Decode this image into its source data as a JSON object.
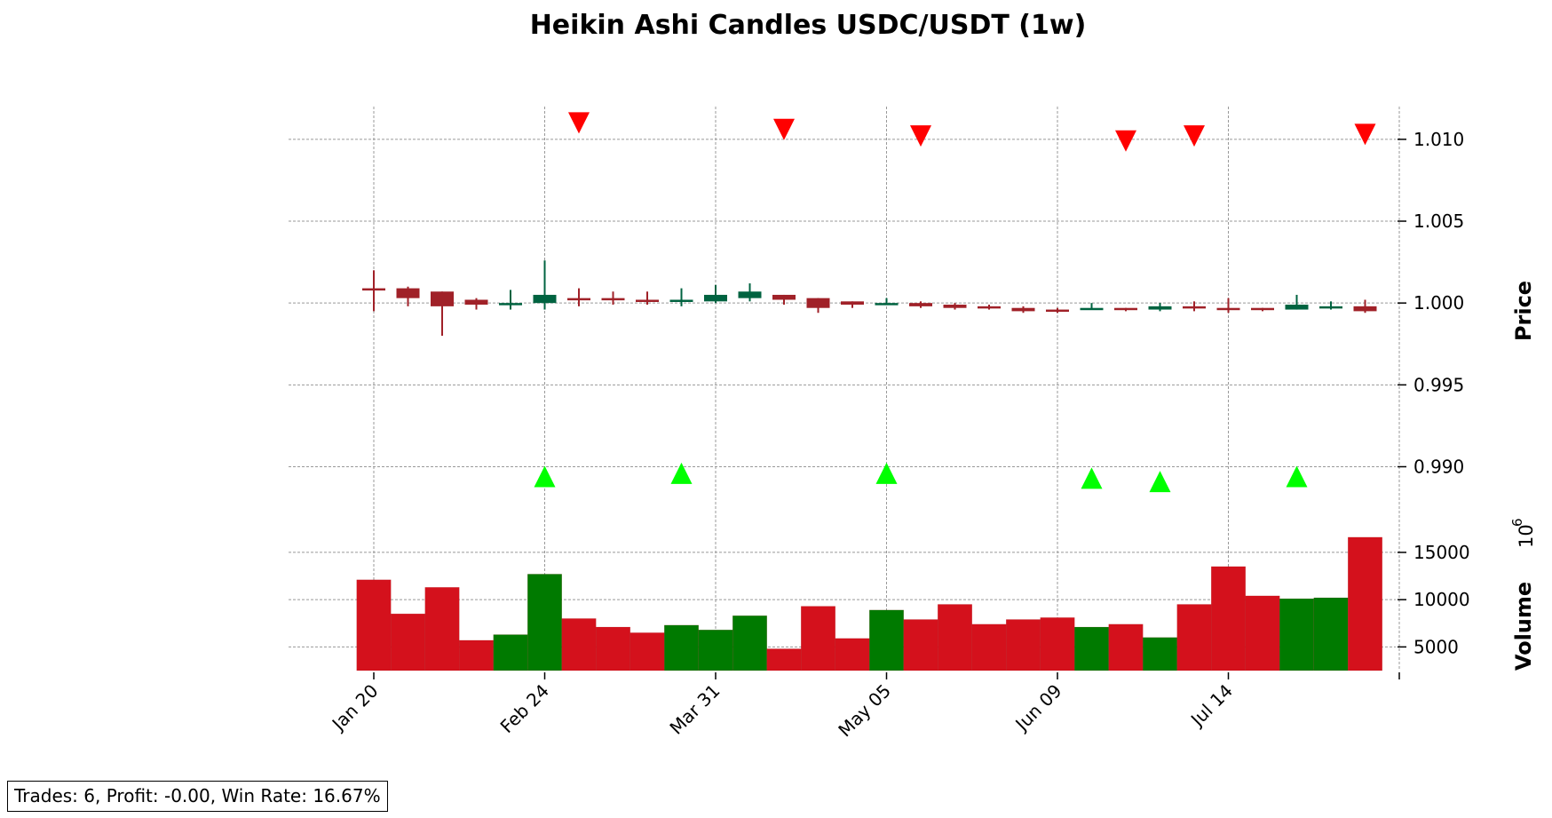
{
  "chart_data": {
    "type": "candlestick",
    "title": "Heikin Ashi Candles USDC/USDT (1w)",
    "price_axis": {
      "label": "Price",
      "ticks": [
        "1.010",
        "1.005",
        "1.000",
        "0.995",
        "0.990"
      ],
      "tick_values": [
        1.01,
        1.005,
        1.0,
        0.995,
        0.99
      ],
      "ylim": [
        0.9865,
        1.012
      ]
    },
    "volume_axis": {
      "label": "Volume",
      "multiplier": "10",
      "multiplier_exp": "6",
      "ticks": [
        "15000",
        "10000",
        "5000"
      ],
      "tick_values": [
        15000,
        10000,
        5000
      ],
      "ylim": [
        2500,
        18000
      ]
    },
    "x_ticks": [
      "Jan 20",
      "Feb 24",
      "Mar 31",
      "May 05",
      "Jun 09",
      "Jul 14"
    ],
    "x_tick_index": [
      0,
      5,
      10,
      15,
      20,
      25
    ],
    "grid": true,
    "colors": {
      "up_candle": "#006340",
      "down_candle": "#a02128",
      "volume_up": "#007a00",
      "volume_down": "#d4111c",
      "buy_marker": "#00ff00",
      "sell_marker": "#ff0000",
      "grid": "#999999"
    },
    "candles": [
      {
        "o": 1.0009,
        "h": 1.002,
        "l": 0.9995,
        "c": 1.0008
      },
      {
        "o": 1.0009,
        "h": 1.001,
        "l": 0.9998,
        "c": 1.0003
      },
      {
        "o": 1.0007,
        "h": 1.0007,
        "l": 0.998,
        "c": 0.9998
      },
      {
        "o": 1.0002,
        "h": 1.0003,
        "l": 0.9996,
        "c": 0.9999
      },
      {
        "o": 1.0,
        "h": 1.0008,
        "l": 0.9996,
        "c": 1.0
      },
      {
        "o": 1.0,
        "h": 1.0026,
        "l": 0.9996,
        "c": 1.0005
      },
      {
        "o": 1.0003,
        "h": 1.0009,
        "l": 0.9998,
        "c": 1.0002
      },
      {
        "o": 1.0003,
        "h": 1.0007,
        "l": 0.9999,
        "c": 1.0002
      },
      {
        "o": 1.0002,
        "h": 1.0007,
        "l": 0.9999,
        "c": 1.0001
      },
      {
        "o": 1.0001,
        "h": 1.0009,
        "l": 0.9998,
        "c": 1.0002
      },
      {
        "o": 1.0001,
        "h": 1.0011,
        "l": 1.0,
        "c": 1.0005
      },
      {
        "o": 1.0003,
        "h": 1.0012,
        "l": 1.0001,
        "c": 1.0007
      },
      {
        "o": 1.0005,
        "h": 1.0005,
        "l": 0.9999,
        "c": 1.0002
      },
      {
        "o": 1.0003,
        "h": 1.0003,
        "l": 0.9994,
        "c": 0.9997
      },
      {
        "o": 1.0001,
        "h": 1.0001,
        "l": 0.9997,
        "c": 0.9999
      },
      {
        "o": 0.9999,
        "h": 1.0003,
        "l": 0.9999,
        "c": 1.0
      },
      {
        "o": 1.0,
        "h": 1.0001,
        "l": 0.9997,
        "c": 0.9998
      },
      {
        "o": 0.9999,
        "h": 1.0,
        "l": 0.9996,
        "c": 0.9997
      },
      {
        "o": 0.9998,
        "h": 0.9999,
        "l": 0.9996,
        "c": 0.9997
      },
      {
        "o": 0.9997,
        "h": 0.9998,
        "l": 0.9994,
        "c": 0.9995
      },
      {
        "o": 0.9996,
        "h": 0.9997,
        "l": 0.9994,
        "c": 0.9995
      },
      {
        "o": 0.9996,
        "h": 1.0,
        "l": 0.9996,
        "c": 0.9997
      },
      {
        "o": 0.9997,
        "h": 0.9997,
        "l": 0.9995,
        "c": 0.9996
      },
      {
        "o": 0.9996,
        "h": 1.0,
        "l": 0.9995,
        "c": 0.9998
      },
      {
        "o": 0.9998,
        "h": 1.0001,
        "l": 0.9995,
        "c": 0.9997
      },
      {
        "o": 0.9997,
        "h": 1.0003,
        "l": 0.9994,
        "c": 0.9996
      },
      {
        "o": 0.9997,
        "h": 0.9997,
        "l": 0.9995,
        "c": 0.9996
      },
      {
        "o": 0.9996,
        "h": 1.0005,
        "l": 0.9996,
        "c": 0.9999
      },
      {
        "o": 0.9997,
        "h": 1.0001,
        "l": 0.9996,
        "c": 0.9998
      },
      {
        "o": 0.9998,
        "h": 1.0002,
        "l": 0.9994,
        "c": 0.9995
      }
    ],
    "volume": [
      12100,
      8500,
      11300,
      5700,
      6300,
      12700,
      8000,
      7100,
      6500,
      7300,
      6800,
      8300,
      4800,
      9300,
      5900,
      8900,
      7900,
      9500,
      7400,
      7900,
      8100,
      7100,
      7400,
      6000,
      9500,
      13500,
      10400,
      10100,
      10200,
      16600
    ],
    "buy_signals": [
      {
        "i": 5,
        "price": 0.9894
      },
      {
        "i": 9,
        "price": 0.9896
      },
      {
        "i": 15,
        "price": 0.9896
      },
      {
        "i": 21,
        "price": 0.9893
      },
      {
        "i": 23,
        "price": 0.9891
      },
      {
        "i": 27,
        "price": 0.9894
      }
    ],
    "sell_signals": [
      {
        "i": 6,
        "price": 1.011
      },
      {
        "i": 12,
        "price": 1.0106
      },
      {
        "i": 16,
        "price": 1.0102
      },
      {
        "i": 22,
        "price": 1.0099
      },
      {
        "i": 24,
        "price": 1.0102
      },
      {
        "i": 29,
        "price": 1.0103
      }
    ]
  },
  "stats": {
    "text": "Trades: 6, Profit: -0.00, Win Rate: 16.67%"
  }
}
